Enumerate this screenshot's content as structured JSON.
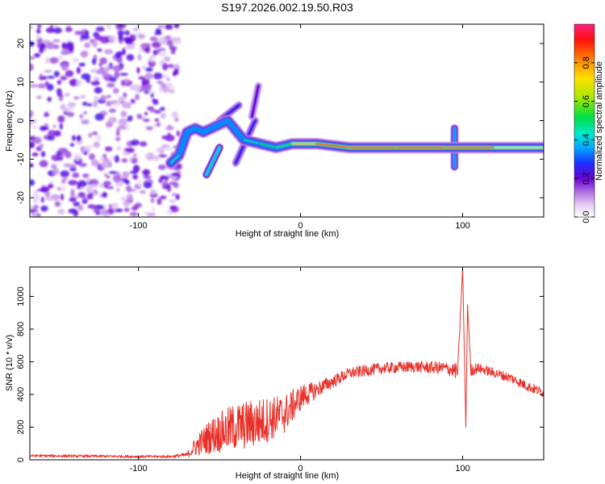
{
  "figure": {
    "title": "S197.2026.002.19.50.R03"
  },
  "chart_data": [
    {
      "type": "heatmap",
      "title": "S197.2026.002.19.50.R03",
      "xlabel": "Height of straight line (km)",
      "ylabel": "Frequency (Hz)",
      "xlim": [
        -167,
        150
      ],
      "ylim": [
        -25,
        25
      ],
      "xticks": [
        -100,
        0,
        100
      ],
      "xtick_labels": [
        "-100",
        "0",
        "100"
      ],
      "yticks": [
        -20,
        -10,
        0,
        10,
        20
      ],
      "ytick_labels": [
        "-20",
        "-10",
        "0",
        "10",
        "20"
      ],
      "colorbar": {
        "label": "Normalized spectral amplitude",
        "range": [
          0,
          1
        ],
        "ticks": [
          0.0,
          0.2,
          0.4,
          0.6,
          0.8
        ],
        "tick_labels": [
          "0.0",
          "0.2",
          "0.4",
          "0.6",
          "0.8"
        ]
      },
      "noise_region": {
        "x": [
          -167,
          -75
        ],
        "freq": [
          -25,
          25
        ],
        "amplitude": 0.15
      },
      "ridge": [
        {
          "x": -80,
          "freq": -11,
          "amp": 0.45
        },
        {
          "x": -75,
          "freq": -9,
          "amp": 0.4
        },
        {
          "x": -70,
          "freq": -3,
          "amp": 0.35
        },
        {
          "x": -65,
          "freq": -2,
          "amp": 0.35
        },
        {
          "x": -60,
          "freq": -3,
          "amp": 0.3
        },
        {
          "x": -55,
          "freq": -2,
          "amp": 0.3
        },
        {
          "x": -45,
          "freq": 0,
          "amp": 0.35
        },
        {
          "x": -35,
          "freq": -5,
          "amp": 0.35
        },
        {
          "x": -25,
          "freq": -6,
          "amp": 0.55
        },
        {
          "x": -15,
          "freq": -7,
          "amp": 0.5
        },
        {
          "x": -5,
          "freq": -6,
          "amp": 0.6
        },
        {
          "x": 10,
          "freq": -6,
          "amp": 0.9
        },
        {
          "x": 30,
          "freq": -7,
          "amp": 0.85
        },
        {
          "x": 60,
          "freq": -7,
          "amp": 0.95
        },
        {
          "x": 90,
          "freq": -7,
          "amp": 0.9
        },
        {
          "x": 120,
          "freq": -7,
          "amp": 0.85
        },
        {
          "x": 150,
          "freq": -7,
          "amp": 0.5
        }
      ],
      "side_streaks": [
        {
          "from": [
            -58,
            -14
          ],
          "to": [
            -50,
            -7
          ],
          "amp": 0.4
        },
        {
          "from": [
            -40,
            -11
          ],
          "to": [
            -28,
            0
          ],
          "amp": 0.25
        },
        {
          "from": [
            -30,
            1
          ],
          "to": [
            -26,
            9
          ],
          "amp": 0.2
        },
        {
          "from": [
            -50,
            0
          ],
          "to": [
            -38,
            4
          ],
          "amp": 0.25
        },
        {
          "from": [
            95,
            -12
          ],
          "to": [
            95,
            -2
          ],
          "amp": 0.35
        }
      ]
    },
    {
      "type": "line",
      "xlabel": "Height of straight line (km)",
      "ylabel": "SNR (10 * v/v)",
      "xlim": [
        -167,
        150
      ],
      "ylim": [
        0,
        1180
      ],
      "xticks": [
        -100,
        0,
        100
      ],
      "xtick_labels": [
        "-100",
        "0",
        "100"
      ],
      "yticks": [
        0,
        200,
        400,
        600,
        800,
        1000
      ],
      "ytick_labels": [
        "0",
        "200",
        "400",
        "600",
        "800",
        "1000"
      ],
      "color": "#e8312a",
      "x": [
        -167,
        -100,
        -80,
        -70,
        -65,
        -55,
        -40,
        -25,
        -10,
        0,
        10,
        20,
        30,
        50,
        70,
        90,
        97,
        100,
        102,
        103,
        105,
        110,
        120,
        130,
        140,
        150
      ],
      "y": [
        25,
        20,
        20,
        30,
        80,
        150,
        200,
        230,
        280,
        380,
        430,
        480,
        530,
        560,
        570,
        560,
        540,
        1180,
        200,
        950,
        550,
        560,
        530,
        500,
        450,
        410
      ],
      "noise_amplitude": [
        8,
        8,
        8,
        15,
        60,
        110,
        150,
        150,
        120,
        80,
        50,
        40,
        35,
        35,
        35,
        40,
        50,
        0,
        0,
        0,
        40,
        30,
        30,
        30,
        30,
        30
      ]
    }
  ]
}
